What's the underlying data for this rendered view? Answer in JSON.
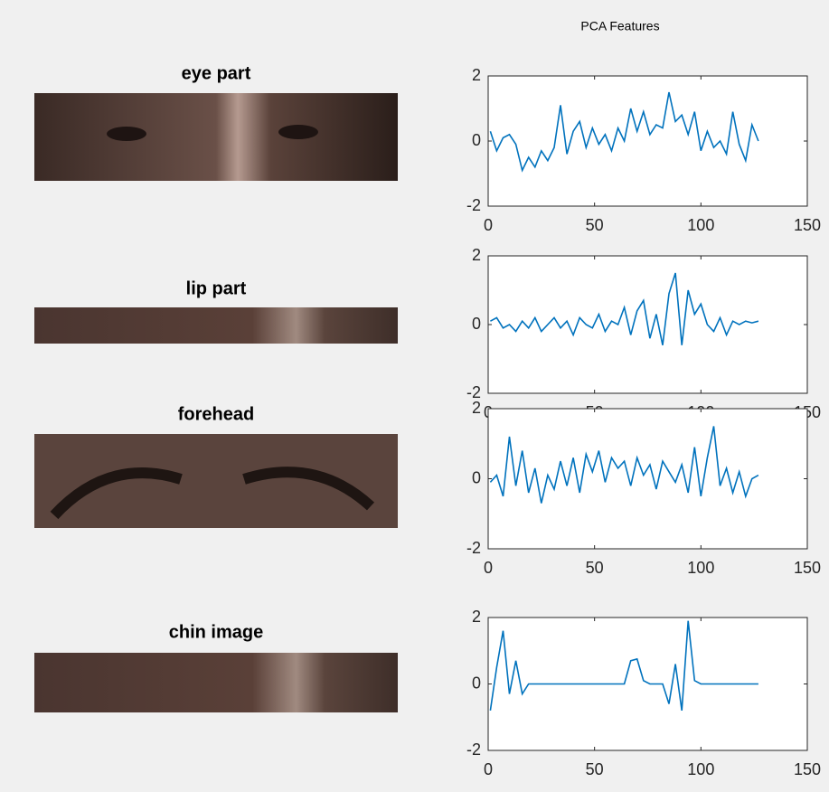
{
  "header": {
    "title": "PCA Features"
  },
  "images": [
    {
      "title": "eye part"
    },
    {
      "title": "lip part"
    },
    {
      "title": "forehead"
    },
    {
      "title": "chin image"
    }
  ],
  "chart_data": [
    {
      "type": "line",
      "color": "#0072bd",
      "xlim": [
        0,
        150
      ],
      "ylim": [
        -2,
        2
      ],
      "xticks": [
        0,
        50,
        100,
        150
      ],
      "yticks": [
        -2,
        0,
        2
      ],
      "x": [
        1,
        4,
        7,
        10,
        13,
        16,
        19,
        22,
        25,
        28,
        31,
        34,
        37,
        40,
        43,
        46,
        49,
        52,
        55,
        58,
        61,
        64,
        67,
        70,
        73,
        76,
        79,
        82,
        85,
        88,
        91,
        94,
        97,
        100,
        103,
        106,
        109,
        112,
        115,
        118,
        121,
        124,
        127
      ],
      "values": [
        0.3,
        -0.3,
        0.1,
        0.2,
        -0.1,
        -0.9,
        -0.5,
        -0.8,
        -0.3,
        -0.6,
        -0.2,
        1.1,
        -0.4,
        0.3,
        0.6,
        -0.2,
        0.4,
        -0.1,
        0.2,
        -0.3,
        0.4,
        0.0,
        1.0,
        0.3,
        0.9,
        0.2,
        0.5,
        0.4,
        1.5,
        0.6,
        0.8,
        0.2,
        0.9,
        -0.3,
        0.3,
        -0.2,
        0.0,
        -0.4,
        0.9,
        -0.1,
        -0.6,
        0.5,
        0.0
      ]
    },
    {
      "type": "line",
      "color": "#0072bd",
      "xlim": [
        0,
        150
      ],
      "ylim": [
        -2,
        2
      ],
      "xticks": [
        0,
        50,
        100,
        150
      ],
      "yticks": [
        -2,
        0,
        2
      ],
      "x": [
        1,
        4,
        7,
        10,
        13,
        16,
        19,
        22,
        25,
        28,
        31,
        34,
        37,
        40,
        43,
        46,
        49,
        52,
        55,
        58,
        61,
        64,
        67,
        70,
        73,
        76,
        79,
        82,
        85,
        88,
        91,
        94,
        97,
        100,
        103,
        106,
        109,
        112,
        115,
        118,
        121,
        124,
        127
      ],
      "values": [
        0.1,
        0.2,
        -0.1,
        0.0,
        -0.2,
        0.1,
        -0.1,
        0.2,
        -0.2,
        0.0,
        0.2,
        -0.1,
        0.1,
        -0.3,
        0.2,
        0.0,
        -0.1,
        0.3,
        -0.2,
        0.1,
        0.0,
        0.5,
        -0.3,
        0.4,
        0.7,
        -0.4,
        0.3,
        -0.6,
        0.9,
        1.5,
        -0.6,
        1.0,
        0.3,
        0.6,
        0.0,
        -0.2,
        0.2,
        -0.3,
        0.1,
        0.0,
        0.1,
        0.05,
        0.1
      ]
    },
    {
      "type": "line",
      "color": "#0072bd",
      "xlim": [
        0,
        150
      ],
      "ylim": [
        -2,
        2
      ],
      "xticks": [
        0,
        50,
        100,
        150
      ],
      "yticks": [
        -2,
        0,
        2
      ],
      "x": [
        1,
        4,
        7,
        10,
        13,
        16,
        19,
        22,
        25,
        28,
        31,
        34,
        37,
        40,
        43,
        46,
        49,
        52,
        55,
        58,
        61,
        64,
        67,
        70,
        73,
        76,
        79,
        82,
        85,
        88,
        91,
        94,
        97,
        100,
        103,
        106,
        109,
        112,
        115,
        118,
        121,
        124,
        127
      ],
      "values": [
        -0.1,
        0.1,
        -0.5,
        1.2,
        -0.2,
        0.8,
        -0.4,
        0.3,
        -0.7,
        0.1,
        -0.3,
        0.5,
        -0.2,
        0.6,
        -0.4,
        0.7,
        0.2,
        0.8,
        -0.1,
        0.6,
        0.3,
        0.5,
        -0.2,
        0.6,
        0.1,
        0.4,
        -0.3,
        0.5,
        0.2,
        -0.1,
        0.4,
        -0.4,
        0.9,
        -0.5,
        0.6,
        1.5,
        -0.2,
        0.3,
        -0.4,
        0.2,
        -0.5,
        0.0,
        0.1
      ]
    },
    {
      "type": "line",
      "color": "#0072bd",
      "xlim": [
        0,
        150
      ],
      "ylim": [
        -2,
        2
      ],
      "xticks": [
        0,
        50,
        100,
        150
      ],
      "yticks": [
        -2,
        0,
        2
      ],
      "x": [
        1,
        4,
        7,
        10,
        13,
        16,
        19,
        22,
        25,
        28,
        31,
        34,
        37,
        40,
        43,
        46,
        49,
        52,
        55,
        58,
        61,
        64,
        67,
        70,
        73,
        76,
        79,
        82,
        85,
        88,
        91,
        94,
        97,
        100,
        103,
        106,
        109,
        112,
        115,
        118,
        121,
        124,
        127
      ],
      "values": [
        -0.8,
        0.5,
        1.6,
        -0.3,
        0.7,
        -0.3,
        0,
        0,
        0,
        0,
        0,
        0,
        0,
        0,
        0,
        0,
        0,
        0,
        0,
        0,
        0,
        0,
        0.7,
        0.75,
        0.1,
        0,
        0,
        0,
        -0.6,
        0.6,
        -0.8,
        1.9,
        0.1,
        0,
        0,
        0,
        0,
        0,
        0,
        0,
        0,
        0,
        0
      ]
    }
  ]
}
